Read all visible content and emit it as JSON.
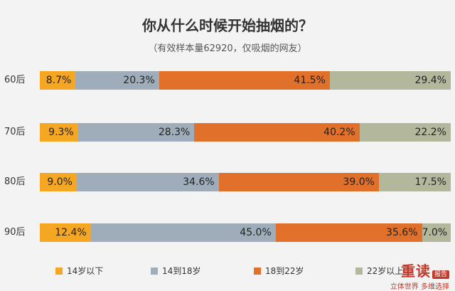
{
  "chart_data": {
    "type": "bar",
    "stacked": "horizontal-100",
    "title": "你从什么时候开始抽烟的？",
    "subtitle": "（有效样本量62920，仅吸烟的网友）",
    "categories": [
      "60后",
      "70后",
      "80后",
      "90后"
    ],
    "series": [
      {
        "name": "14岁以下",
        "color": "#f5a623",
        "values": [
          8.7,
          9.3,
          9.0,
          12.4
        ],
        "labels": [
          "8.7%",
          "9.3%",
          "9.0%",
          "12.4%"
        ]
      },
      {
        "name": "14到18岁",
        "color": "#9eadb9",
        "values": [
          20.3,
          28.3,
          34.6,
          45.0
        ],
        "labels": [
          "20.3%",
          "28.3%",
          "34.6%",
          "45.0%"
        ]
      },
      {
        "name": "18到22岁",
        "color": "#e0702a",
        "values": [
          41.5,
          40.2,
          39.0,
          35.6
        ],
        "labels": [
          "41.5%",
          "40.2%",
          "39.0%",
          "35.6%"
        ]
      },
      {
        "name": "22岁以上",
        "color": "#b3b79c",
        "values": [
          29.4,
          22.2,
          17.5,
          7.0
        ],
        "labels": [
          "29.4%",
          "22.2%",
          "17.5%",
          "7.0%"
        ]
      }
    ],
    "xlim": [
      0,
      100
    ],
    "legend_position": "bottom",
    "grid": false
  },
  "watermark": {
    "brand": "重读",
    "tag": "报告",
    "line": "立体世界 多维选择"
  }
}
